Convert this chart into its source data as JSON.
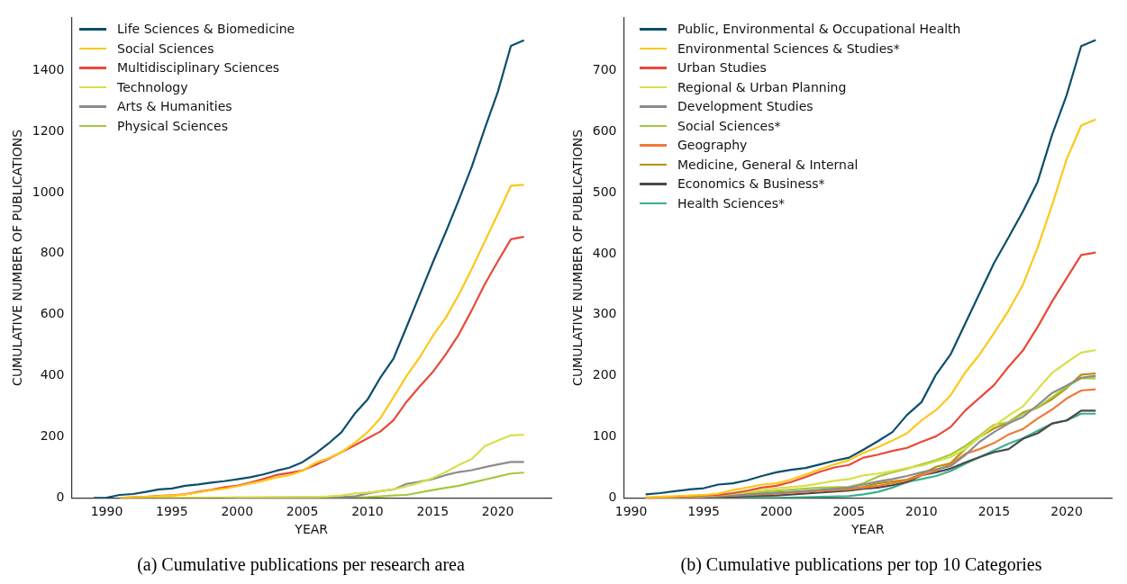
{
  "chart_data": [
    {
      "type": "line",
      "title": "(a) Cumulative publications per research area",
      "xlabel": "YEAR",
      "ylabel": "CUMULATIVE NUMBER OF PUBLICATIONS",
      "xlim": [
        1987.3,
        2024.1
      ],
      "xticks": [
        1990,
        1995,
        2000,
        2005,
        2010,
        2015,
        2020
      ],
      "ylim": [
        0,
        1573
      ],
      "yticks": [
        0,
        200,
        400,
        600,
        800,
        1000,
        1200,
        1400
      ],
      "grid": false,
      "legend": "top left",
      "marker": "none",
      "line_style": "solid",
      "series": [
        {
          "name": "Life Sciences & Biomedicine",
          "color": "#0b4f6c",
          "x": [
            1989,
            1990,
            1991,
            1992,
            1993,
            1994,
            1995,
            1996,
            1997,
            1998,
            1999,
            2000,
            2001,
            2002,
            2003,
            2004,
            2005,
            2006,
            2007,
            2008,
            2009,
            2010,
            2011,
            2012,
            2013,
            2014,
            2015,
            2016,
            2017,
            2018,
            2019,
            2020,
            2021,
            2022
          ],
          "values": [
            0,
            1,
            10,
            13,
            20,
            28,
            31,
            40,
            44,
            50,
            55,
            61,
            68,
            77,
            89,
            99,
            117,
            145,
            178,
            215,
            275,
            322,
            395,
            457,
            560,
            665,
            770,
            870,
            975,
            1085,
            1210,
            1330,
            1480,
            1498
          ]
        },
        {
          "name": "Social Sciences",
          "color": "#fcc81a",
          "x": [
            1991,
            1992,
            1993,
            1994,
            1995,
            1996,
            1997,
            1998,
            1999,
            2000,
            2001,
            2002,
            2003,
            2004,
            2005,
            2006,
            2007,
            2008,
            2009,
            2010,
            2011,
            2012,
            2013,
            2014,
            2015,
            2016,
            2017,
            2018,
            2019,
            2020,
            2021,
            2022
          ],
          "values": [
            0,
            2,
            4,
            6,
            8,
            11,
            18,
            25,
            30,
            38,
            47,
            56,
            67,
            74,
            89,
            115,
            130,
            150,
            180,
            215,
            262,
            330,
            400,
            460,
            530,
            590,
            665,
            750,
            840,
            930,
            1022,
            1025
          ]
        },
        {
          "name": "Multidisciplinary Sciences",
          "color": "#e9493a",
          "x": [
            1991,
            1992,
            1993,
            1994,
            1995,
            1996,
            1997,
            1998,
            1999,
            2000,
            2001,
            2002,
            2003,
            2004,
            2005,
            2006,
            2007,
            2008,
            2009,
            2010,
            2011,
            2012,
            2013,
            2014,
            2015,
            2016,
            2017,
            2018,
            2019,
            2020,
            2021,
            2022
          ],
          "values": [
            0,
            2,
            4,
            7,
            9,
            12,
            20,
            27,
            35,
            40,
            50,
            62,
            75,
            82,
            90,
            108,
            128,
            150,
            172,
            195,
            218,
            255,
            315,
            365,
            412,
            470,
            535,
            615,
            700,
            775,
            847,
            855
          ]
        },
        {
          "name": "Technology",
          "color": "#d8e04a",
          "x": [
            1991,
            2000,
            2005,
            2006,
            2007,
            2008,
            2009,
            2010,
            2011,
            2012,
            2013,
            2014,
            2015,
            2016,
            2017,
            2018,
            2019,
            2020,
            2021,
            2022
          ],
          "values": [
            0,
            2,
            3,
            3,
            5,
            8,
            15,
            18,
            22,
            28,
            38,
            50,
            65,
            85,
            108,
            128,
            170,
            188,
            205,
            207
          ]
        },
        {
          "name": "Arts & Humanities",
          "color": "#8c8c8c",
          "x": [
            1999,
            2005,
            2008,
            2009,
            2010,
            2011,
            2012,
            2013,
            2014,
            2015,
            2016,
            2017,
            2018,
            2019,
            2020,
            2021,
            2022
          ],
          "values": [
            0,
            2,
            3,
            5,
            15,
            22,
            28,
            46,
            53,
            62,
            75,
            85,
            91,
            101,
            110,
            118,
            118
          ]
        },
        {
          "name": "Physical Sciences",
          "color": "#a5c83f",
          "x": [
            2000,
            2005,
            2010,
            2011,
            2012,
            2013,
            2014,
            2015,
            2016,
            2017,
            2018,
            2019,
            2020,
            2021,
            2022
          ],
          "values": [
            0,
            1,
            3,
            5,
            8,
            10,
            18,
            26,
            33,
            40,
            50,
            60,
            70,
            80,
            83
          ]
        }
      ]
    },
    {
      "type": "line",
      "title": "(b) Cumulative publications per top 10 Categories",
      "xlabel": "YEAR",
      "ylabel": "CUMULATIVE NUMBER OF PUBLICATIONS",
      "xlim": [
        1989.5,
        2023.1
      ],
      "xticks": [
        1990,
        1995,
        2000,
        2005,
        2010,
        2015,
        2020
      ],
      "ylim": [
        0,
        787
      ],
      "yticks": [
        0,
        100,
        200,
        300,
        400,
        500,
        600,
        700
      ],
      "grid": false,
      "legend": "top left",
      "marker": "none",
      "line_style": "solid",
      "series": [
        {
          "name": "Public, Environmental & Occupational Health",
          "color": "#0b4f6c",
          "x": [
            1991,
            1992,
            1993,
            1994,
            1995,
            1996,
            1997,
            1998,
            1999,
            2000,
            2001,
            2002,
            2003,
            2004,
            2005,
            2006,
            2007,
            2008,
            2009,
            2010,
            2011,
            2012,
            2013,
            2014,
            2015,
            2016,
            2017,
            2018,
            2019,
            2020,
            2021,
            2022
          ],
          "values": [
            6,
            8,
            11,
            14,
            16,
            22,
            24,
            29,
            36,
            42,
            46,
            49,
            55,
            61,
            66,
            79,
            93,
            108,
            136,
            157,
            202,
            235,
            285,
            335,
            385,
            427,
            470,
            518,
            595,
            660,
            740,
            750
          ]
        },
        {
          "name": "Environmental Sciences & Studies*",
          "color": "#fcc81a",
          "x": [
            1991,
            1992,
            1993,
            1994,
            1995,
            1996,
            1997,
            1998,
            1999,
            2000,
            2001,
            2002,
            2003,
            2004,
            2005,
            2006,
            2007,
            2008,
            2009,
            2010,
            2011,
            2012,
            2013,
            2014,
            2015,
            2016,
            2017,
            2018,
            2019,
            2020,
            2021,
            2022
          ],
          "values": [
            1,
            2,
            3,
            4,
            5,
            7,
            13,
            17,
            22,
            24,
            30,
            38,
            47,
            55,
            62,
            74,
            83,
            94,
            106,
            127,
            144,
            168,
            205,
            235,
            270,
            307,
            350,
            410,
            480,
            555,
            610,
            620
          ]
        },
        {
          "name": "Urban Studies",
          "color": "#e9493a",
          "x": [
            1991,
            1992,
            1993,
            1994,
            1995,
            1996,
            1997,
            1998,
            1999,
            2000,
            2001,
            2002,
            2003,
            2004,
            2005,
            2006,
            2007,
            2008,
            2009,
            2010,
            2011,
            2012,
            2013,
            2014,
            2015,
            2016,
            2017,
            2018,
            2019,
            2020,
            2021,
            2022
          ],
          "values": [
            0,
            1,
            2,
            3,
            4,
            5,
            8,
            12,
            17,
            20,
            26,
            34,
            43,
            50,
            54,
            66,
            71,
            77,
            82,
            92,
            101,
            116,
            143,
            164,
            185,
            215,
            242,
            280,
            322,
            360,
            398,
            402
          ]
        },
        {
          "name": "Regional & Urban Planning",
          "color": "#d8e04a",
          "x": [
            1991,
            1995,
            1997,
            2000,
            2002,
            2004,
            2005,
            2006,
            2007,
            2008,
            2009,
            2010,
            2011,
            2012,
            2013,
            2014,
            2015,
            2016,
            2017,
            2018,
            2019,
            2020,
            2021,
            2022
          ],
          "values": [
            0,
            3,
            7,
            16,
            20,
            28,
            31,
            37,
            40,
            44,
            49,
            53,
            60,
            67,
            80,
            100,
            118,
            135,
            150,
            178,
            205,
            222,
            238,
            242
          ]
        },
        {
          "name": "Development Studies",
          "color": "#8c8c8c",
          "x": [
            1991,
            1995,
            2000,
            2005,
            2006,
            2007,
            2008,
            2009,
            2010,
            2011,
            2012,
            2013,
            2014,
            2015,
            2016,
            2017,
            2018,
            2019,
            2020,
            2021,
            2022
          ],
          "values": [
            0,
            2,
            8,
            17,
            22,
            27,
            31,
            36,
            42,
            47,
            52,
            70,
            92,
            108,
            122,
            133,
            152,
            172,
            184,
            197,
            200
          ]
        },
        {
          "name": "Social Sciences*",
          "color": "#a5c83f",
          "x": [
            1991,
            1995,
            2000,
            2003,
            2005,
            2006,
            2007,
            2008,
            2009,
            2010,
            2011,
            2012,
            2013,
            2014,
            2015,
            2016,
            2017,
            2018,
            2019,
            2020,
            2021,
            2022
          ],
          "values": [
            0,
            3,
            12,
            17,
            18,
            24,
            35,
            42,
            48,
            55,
            62,
            71,
            85,
            102,
            120,
            124,
            138,
            148,
            165,
            182,
            196,
            196
          ]
        },
        {
          "name": "Geography",
          "color": "#f07a3a",
          "x": [
            1991,
            1995,
            2000,
            2005,
            2006,
            2007,
            2008,
            2009,
            2010,
            2011,
            2012,
            2013,
            2014,
            2015,
            2016,
            2017,
            2018,
            2019,
            2020,
            2021,
            2022
          ],
          "values": [
            0,
            2,
            7,
            15,
            17,
            20,
            24,
            29,
            37,
            45,
            55,
            72,
            80,
            90,
            104,
            113,
            130,
            145,
            163,
            176,
            178
          ]
        },
        {
          "name": "Medicine, General & Internal",
          "color": "#b8900a",
          "x": [
            1991,
            1995,
            2000,
            2005,
            2006,
            2007,
            2008,
            2009,
            2010,
            2011,
            2012,
            2013,
            2014,
            2015,
            2016,
            2017,
            2018,
            2019,
            2020,
            2021,
            2022
          ],
          "values": [
            0,
            2,
            9,
            14,
            18,
            24,
            27,
            30,
            39,
            51,
            57,
            80,
            100,
            114,
            124,
            140,
            148,
            162,
            180,
            202,
            204
          ]
        },
        {
          "name": "Economics & Business*",
          "color": "#4a4a4a",
          "x": [
            1991,
            1995,
            2000,
            2005,
            2006,
            2007,
            2008,
            2009,
            2010,
            2011,
            2012,
            2013,
            2014,
            2015,
            2016,
            2017,
            2018,
            2019,
            2020,
            2021,
            2022
          ],
          "values": [
            0,
            1,
            4,
            12,
            15,
            17,
            21,
            26,
            37,
            42,
            48,
            58,
            67,
            75,
            80,
            97,
            106,
            122,
            127,
            143,
            143
          ]
        },
        {
          "name": "Health Sciences*",
          "color": "#3db08f",
          "x": [
            1991,
            2000,
            2005,
            2006,
            2007,
            2008,
            2009,
            2010,
            2011,
            2012,
            2013,
            2014,
            2015,
            2016,
            2017,
            2018,
            2019,
            2020,
            2021,
            2022
          ],
          "values": [
            0,
            0,
            3,
            6,
            10,
            17,
            26,
            31,
            36,
            44,
            56,
            67,
            78,
            89,
            98,
            110,
            122,
            127,
            138,
            138
          ]
        }
      ]
    }
  ]
}
